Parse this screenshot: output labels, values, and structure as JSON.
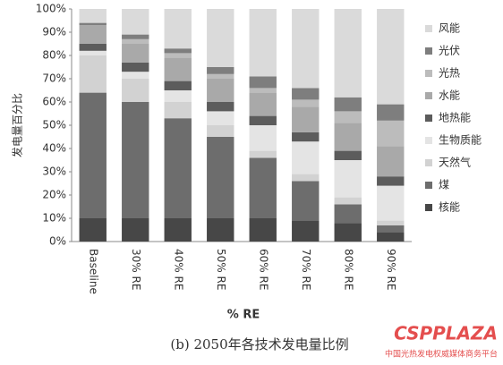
{
  "chart_data": {
    "type": "stacked_bar",
    "y_label": "发电量百分比",
    "x_label": "% RE",
    "caption": "(b) 2050年各技术发电量比例",
    "categories": [
      "Baseline",
      "30% RE",
      "40% RE",
      "50% RE",
      "60% RE",
      "70% RE",
      "80% RE",
      "90% RE"
    ],
    "series": [
      {
        "name": "核能",
        "color": "#474747",
        "values": [
          10,
          10,
          10,
          10,
          10,
          9,
          8,
          4
        ]
      },
      {
        "name": "煤",
        "color": "#6d6d6d",
        "values": [
          54,
          50,
          43,
          35,
          26,
          17,
          8,
          3
        ]
      },
      {
        "name": "天然气",
        "color": "#d2d2d2",
        "values": [
          16,
          10,
          7,
          5,
          3,
          3,
          3,
          2
        ]
      },
      {
        "name": "生物质能",
        "color": "#e4e4e4",
        "values": [
          2,
          3,
          5,
          6,
          11,
          14,
          16,
          15
        ]
      },
      {
        "name": "地热能",
        "color": "#5c5c5c",
        "values": [
          3,
          4,
          4,
          4,
          4,
          4,
          4,
          4
        ]
      },
      {
        "name": "水能",
        "color": "#a9a9a9",
        "values": [
          8,
          8,
          10,
          10,
          10,
          11,
          12,
          13
        ]
      },
      {
        "name": "光热",
        "color": "#bcbcbc",
        "values": [
          0,
          2,
          2,
          2,
          2,
          3,
          5,
          11
        ]
      },
      {
        "name": "光伏",
        "color": "#7e7e7e",
        "values": [
          1,
          2,
          2,
          3,
          5,
          5,
          6,
          7
        ]
      },
      {
        "name": "风能",
        "color": "#dadada",
        "values": [
          6,
          11,
          17,
          25,
          29,
          34,
          38,
          41
        ]
      }
    ],
    "ylim": [
      0,
      100
    ],
    "yticks": [
      {
        "value": 0,
        "label": "0%"
      },
      {
        "value": 10,
        "label": "10%"
      },
      {
        "value": 20,
        "label": "20%"
      },
      {
        "value": 30,
        "label": "30%"
      },
      {
        "value": 40,
        "label": "40%"
      },
      {
        "value": 50,
        "label": "50%"
      },
      {
        "value": 60,
        "label": "60%"
      },
      {
        "value": 70,
        "label": "70%"
      },
      {
        "value": 80,
        "label": "80%"
      },
      {
        "value": 90,
        "label": "90%"
      },
      {
        "value": 100,
        "label": "100%"
      }
    ],
    "legend": "right"
  },
  "watermark": {
    "brand": "CSPPLAZA",
    "tagline": "中国光热发电权威媒体商务平台"
  }
}
